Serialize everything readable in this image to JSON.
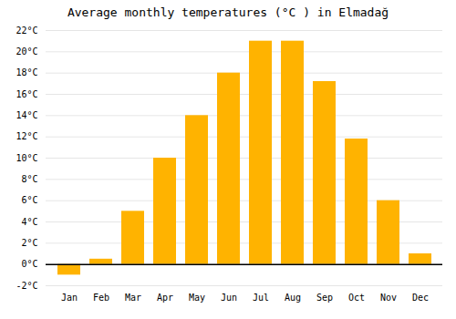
{
  "chart_data": {
    "type": "bar",
    "title": "Average monthly temperatures (°C ) in Elmadağ",
    "categories": [
      "Jan",
      "Feb",
      "Mar",
      "Apr",
      "May",
      "Jun",
      "Jul",
      "Aug",
      "Sep",
      "Oct",
      "Nov",
      "Dec"
    ],
    "values": [
      -1.0,
      0.5,
      5.0,
      10.0,
      14.0,
      18.0,
      21.0,
      21.0,
      17.2,
      11.8,
      6.0,
      1.0
    ],
    "color": "#FFB300",
    "ylim": [
      -2,
      22
    ],
    "yticks": [
      {
        "value": -2,
        "label": "-2°C"
      },
      {
        "value": 0,
        "label": "0°C"
      },
      {
        "value": 2,
        "label": "2°C"
      },
      {
        "value": 4,
        "label": "4°C"
      },
      {
        "value": 6,
        "label": "6°C"
      },
      {
        "value": 8,
        "label": "8°C"
      },
      {
        "value": 10,
        "label": "10°C"
      },
      {
        "value": 12,
        "label": "12°C"
      },
      {
        "value": 14,
        "label": "14°C"
      },
      {
        "value": 16,
        "label": "16°C"
      },
      {
        "value": 18,
        "label": "18°C"
      },
      {
        "value": 20,
        "label": "20°C"
      },
      {
        "value": 22,
        "label": "22°C"
      }
    ],
    "grid": true
  }
}
